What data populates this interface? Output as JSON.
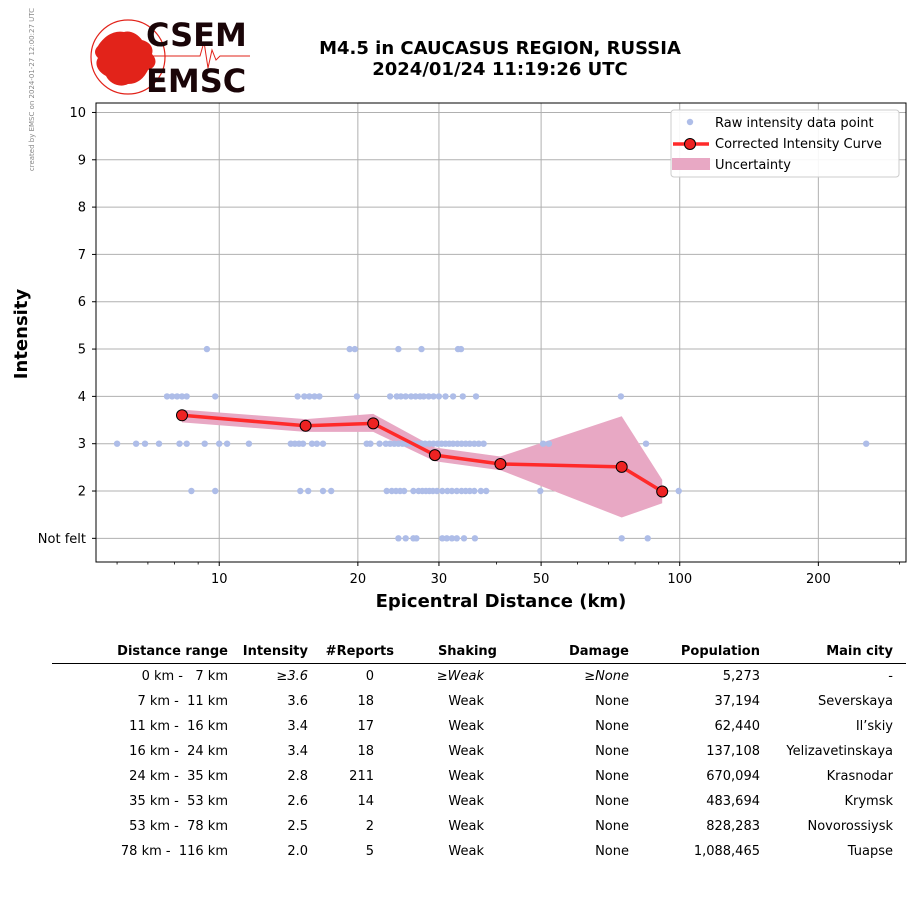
{
  "credit": "created by EMSC on 2024-01-27 12:00:27 UTC",
  "logo": {
    "line1": "CSEM",
    "line2": "EMSC"
  },
  "title": {
    "line1": "M4.5 in CAUCASUS REGION, RUSSIA",
    "line2": "2024/01/24 11:19:26 UTC"
  },
  "colors": {
    "raw": "#aebde8",
    "curve": "#ff2a2a",
    "marker": "#ee2222",
    "band": "#e8a8c4",
    "grid": "#b0b0b0",
    "logo_red": "#e2231a"
  },
  "chart_data": {
    "type": "scatter",
    "xlabel": "Epicentral Distance (km)",
    "ylabel": "Intensity",
    "xscale": "log",
    "xlim": [
      5.4,
      310
    ],
    "ylim": [
      0.5,
      10.2
    ],
    "xticks": [
      10,
      20,
      30,
      50,
      100,
      200
    ],
    "yticks": [
      {
        "value": 1,
        "label": "Not felt"
      },
      {
        "value": 2,
        "label": "2"
      },
      {
        "value": 3,
        "label": "3"
      },
      {
        "value": 4,
        "label": "4"
      },
      {
        "value": 5,
        "label": "5"
      },
      {
        "value": 6,
        "label": "6"
      },
      {
        "value": 7,
        "label": "7"
      },
      {
        "value": 8,
        "label": "8"
      },
      {
        "value": 9,
        "label": "9"
      },
      {
        "value": 10,
        "label": "10"
      }
    ],
    "grid": true,
    "legend_position": "top-right",
    "legend": [
      "Raw intensity data point",
      "Corrected Intensity Curve",
      "Uncertainty"
    ],
    "series": [
      {
        "name": "Raw intensity data point",
        "points": [
          [
            9.4,
            5
          ],
          [
            19.2,
            5
          ],
          [
            19.7,
            5
          ],
          [
            24.5,
            5
          ],
          [
            27.5,
            5
          ],
          [
            33.0,
            5
          ],
          [
            33.5,
            5
          ],
          [
            7.7,
            4
          ],
          [
            7.9,
            4
          ],
          [
            8.1,
            4
          ],
          [
            8.3,
            4
          ],
          [
            8.5,
            4
          ],
          [
            9.8,
            4
          ],
          [
            14.8,
            4
          ],
          [
            15.3,
            4
          ],
          [
            15.7,
            4
          ],
          [
            16.1,
            4
          ],
          [
            16.5,
            4
          ],
          [
            19.9,
            4
          ],
          [
            23.5,
            4
          ],
          [
            24.3,
            4
          ],
          [
            24.8,
            4
          ],
          [
            25.4,
            4
          ],
          [
            26.1,
            4
          ],
          [
            26.7,
            4
          ],
          [
            27.3,
            4
          ],
          [
            27.8,
            4
          ],
          [
            28.5,
            4
          ],
          [
            29.2,
            4
          ],
          [
            30.0,
            4
          ],
          [
            31.0,
            4
          ],
          [
            32.2,
            4
          ],
          [
            33.8,
            4
          ],
          [
            36.1,
            4
          ],
          [
            74.5,
            4
          ],
          [
            6.0,
            3
          ],
          [
            6.6,
            3
          ],
          [
            6.9,
            3
          ],
          [
            7.4,
            3
          ],
          [
            8.2,
            3
          ],
          [
            8.5,
            3
          ],
          [
            9.3,
            3
          ],
          [
            10.0,
            3
          ],
          [
            10.4,
            3
          ],
          [
            11.6,
            3
          ],
          [
            14.3,
            3
          ],
          [
            14.6,
            3
          ],
          [
            14.9,
            3
          ],
          [
            15.2,
            3
          ],
          [
            15.9,
            3
          ],
          [
            16.3,
            3
          ],
          [
            16.8,
            3
          ],
          [
            20.9,
            3
          ],
          [
            21.3,
            3
          ],
          [
            22.3,
            3
          ],
          [
            23.0,
            3
          ],
          [
            23.5,
            3
          ],
          [
            24.0,
            3
          ],
          [
            24.5,
            3
          ],
          [
            25.0,
            3
          ],
          [
            25.5,
            3
          ],
          [
            26.0,
            3
          ],
          [
            26.5,
            3
          ],
          [
            27.0,
            3
          ],
          [
            27.5,
            3
          ],
          [
            28.0,
            3
          ],
          [
            28.6,
            3
          ],
          [
            29.2,
            3
          ],
          [
            29.8,
            3
          ],
          [
            30.4,
            3
          ],
          [
            31.0,
            3
          ],
          [
            31.6,
            3
          ],
          [
            32.2,
            3
          ],
          [
            32.9,
            3
          ],
          [
            33.6,
            3
          ],
          [
            34.3,
            3
          ],
          [
            35.0,
            3
          ],
          [
            35.8,
            3
          ],
          [
            36.6,
            3
          ],
          [
            37.5,
            3
          ],
          [
            50.5,
            3
          ],
          [
            52.0,
            3
          ],
          [
            84.5,
            3
          ],
          [
            254.0,
            3
          ],
          [
            8.7,
            2
          ],
          [
            9.8,
            2
          ],
          [
            15.0,
            2
          ],
          [
            15.6,
            2
          ],
          [
            16.8,
            2
          ],
          [
            17.5,
            2
          ],
          [
            23.1,
            2
          ],
          [
            23.7,
            2
          ],
          [
            24.2,
            2
          ],
          [
            24.7,
            2
          ],
          [
            25.2,
            2
          ],
          [
            26.4,
            2
          ],
          [
            27.1,
            2
          ],
          [
            27.6,
            2
          ],
          [
            28.1,
            2
          ],
          [
            28.6,
            2
          ],
          [
            29.1,
            2
          ],
          [
            29.7,
            2
          ],
          [
            30.5,
            2
          ],
          [
            31.3,
            2
          ],
          [
            32.0,
            2
          ],
          [
            32.8,
            2
          ],
          [
            33.6,
            2
          ],
          [
            34.3,
            2
          ],
          [
            35.0,
            2
          ],
          [
            35.8,
            2
          ],
          [
            37.0,
            2
          ],
          [
            38.0,
            2
          ],
          [
            49.8,
            2
          ],
          [
            99.5,
            2
          ],
          [
            24.5,
            1
          ],
          [
            25.4,
            1
          ],
          [
            26.4,
            1
          ],
          [
            26.8,
            1
          ],
          [
            30.5,
            1
          ],
          [
            31.2,
            1
          ],
          [
            32.0,
            1
          ],
          [
            32.8,
            1
          ],
          [
            34.0,
            1
          ],
          [
            35.9,
            1
          ],
          [
            74.8,
            1
          ],
          [
            85.2,
            1
          ]
        ]
      },
      {
        "name": "Corrected Intensity Curve",
        "points": [
          [
            8.3,
            3.6
          ],
          [
            15.4,
            3.38
          ],
          [
            21.6,
            3.43
          ],
          [
            29.4,
            2.76
          ],
          [
            40.8,
            2.57
          ],
          [
            74.8,
            2.51
          ],
          [
            91.6,
            1.99
          ]
        ]
      },
      {
        "name": "Uncertainty",
        "upper": [
          [
            8.3,
            3.72
          ],
          [
            15.4,
            3.52
          ],
          [
            21.6,
            3.63
          ],
          [
            29.4,
            2.92
          ],
          [
            40.8,
            2.73
          ],
          [
            74.8,
            3.58
          ],
          [
            91.6,
            2.24
          ]
        ],
        "lower": [
          [
            8.3,
            3.45
          ],
          [
            15.4,
            3.25
          ],
          [
            21.6,
            3.25
          ],
          [
            29.4,
            2.63
          ],
          [
            40.8,
            2.44
          ],
          [
            74.8,
            1.44
          ],
          [
            91.6,
            1.74
          ]
        ]
      }
    ]
  },
  "table": {
    "headers": [
      "Distance range",
      "Intensity",
      "#Reports",
      "Shaking",
      "Damage",
      "Population",
      "Main city"
    ],
    "rows": [
      {
        "range": "0 km -   7 km",
        "intensity": "≥3.6",
        "reports": "0",
        "shaking": "≥Weak",
        "damage": "≥None",
        "population": "5,273",
        "city": "-"
      },
      {
        "range": "7 km -  11 km",
        "intensity": "3.6",
        "reports": "18",
        "shaking": "Weak",
        "damage": "None",
        "population": "37,194",
        "city": "Severskaya"
      },
      {
        "range": "11 km -  16 km",
        "intensity": "3.4",
        "reports": "17",
        "shaking": "Weak",
        "damage": "None",
        "population": "62,440",
        "city": "Il’skiy"
      },
      {
        "range": "16 km -  24 km",
        "intensity": "3.4",
        "reports": "18",
        "shaking": "Weak",
        "damage": "None",
        "population": "137,108",
        "city": "Yelizavetinskaya"
      },
      {
        "range": "24 km -  35 km",
        "intensity": "2.8",
        "reports": "211",
        "shaking": "Weak",
        "damage": "None",
        "population": "670,094",
        "city": "Krasnodar"
      },
      {
        "range": "35 km -  53 km",
        "intensity": "2.6",
        "reports": "14",
        "shaking": "Weak",
        "damage": "None",
        "population": "483,694",
        "city": "Krymsk"
      },
      {
        "range": "53 km -  78 km",
        "intensity": "2.5",
        "reports": "2",
        "shaking": "Weak",
        "damage": "None",
        "population": "828,283",
        "city": "Novorossiysk"
      },
      {
        "range": "78 km -  116 km",
        "intensity": "2.0",
        "reports": "5",
        "shaking": "Weak",
        "damage": "None",
        "population": "1,088,465",
        "city": "Tuapse"
      }
    ]
  }
}
